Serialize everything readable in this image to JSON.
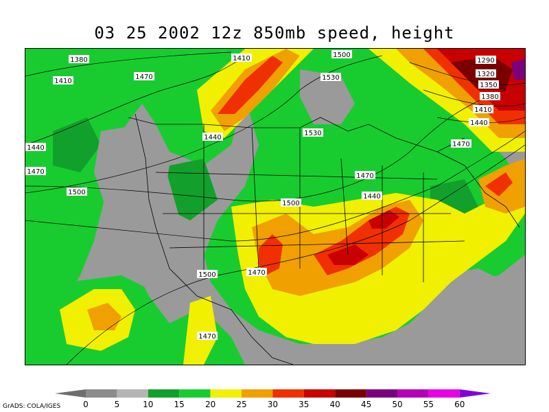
{
  "title": "03 25 2002 12z 850mb speed, height",
  "credit": "GrADS: COLA/IGES",
  "colorbar": {
    "levels": [
      "0",
      "5",
      "10",
      "15",
      "20",
      "25",
      "30",
      "35",
      "40",
      "45",
      "50",
      "55",
      "60"
    ],
    "colors": [
      "#6e6e6e",
      "#8c8c8c",
      "#b4b4b4",
      "#12a02c",
      "#18cc30",
      "#f0f000",
      "#f0a000",
      "#f03000",
      "#c80000",
      "#7a0000",
      "#7c007c",
      "#b400b4",
      "#e600e6",
      "#8200dc"
    ]
  },
  "contours": [
    {
      "label": "1380"
    },
    {
      "label": "1410"
    },
    {
      "label": "1410"
    },
    {
      "label": "1500"
    },
    {
      "label": "1290"
    },
    {
      "label": "1320"
    },
    {
      "label": "1350"
    },
    {
      "label": "1380"
    },
    {
      "label": "1410"
    },
    {
      "label": "1440"
    },
    {
      "label": "1470"
    },
    {
      "label": "1530"
    },
    {
      "label": "1530"
    },
    {
      "label": "1440"
    },
    {
      "label": "1440"
    },
    {
      "label": "1470"
    },
    {
      "label": "1500"
    },
    {
      "label": "1470"
    },
    {
      "label": "1440"
    },
    {
      "label": "1500"
    },
    {
      "label": "1470"
    },
    {
      "label": "1470"
    },
    {
      "label": "1500"
    },
    {
      "label": "1470"
    }
  ]
}
